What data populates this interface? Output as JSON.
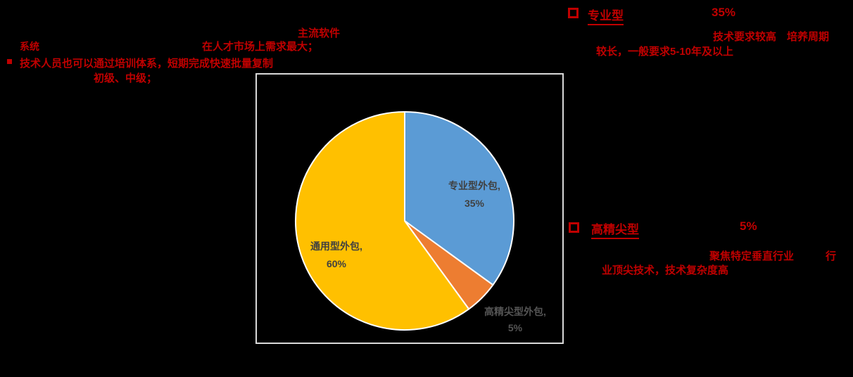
{
  "slide": {
    "background_color": "#000000",
    "accent_color": "#C00000"
  },
  "annotations": {
    "top_left": {
      "line1": "主流软件",
      "line2_part1": "系统",
      "line2_part2": "在人才市场上需求最大；",
      "line3": "技术人员也可以通过培训体系，短期完成快速批量复制",
      "line4": "初级、中级；"
    },
    "right_block_professional": {
      "title": "专业型",
      "value": "35%",
      "line2": "技术要求较高　培养周期",
      "line3": "较长，一般要求5-10年及以上"
    },
    "right_block_highend": {
      "title": "高精尖型",
      "value": "5%",
      "line2_part1": "聚焦特定垂直行业",
      "line2_part2": "行",
      "line3": "业顶尖技术，技术复杂度高"
    }
  },
  "chart_data": {
    "type": "pie",
    "title": "",
    "legend": "none",
    "start_angle_deg": 0,
    "direction": "clockwise",
    "plot_border_color": "#D9D9D9",
    "slice_stroke_color": "#FFFFFF",
    "label_color_inside": "#404040",
    "label_color_outside": "#555555",
    "categories": [
      "专业型外包",
      "高精尖型外包",
      "通用型外包"
    ],
    "values": [
      35,
      5,
      60
    ],
    "slices": [
      {
        "label": "专业型外包",
        "value": 35,
        "color": "#5B9BD5",
        "data_label_line1": "专业型外包,",
        "data_label_line2": "35%"
      },
      {
        "label": "高精尖型外包",
        "value": 5,
        "color": "#ED7D31",
        "data_label_line1": "高精尖型外包,",
        "data_label_line2": "5%"
      },
      {
        "label": "通用型外包",
        "value": 60,
        "color": "#FFC000",
        "data_label_line1": "通用型外包,",
        "data_label_line2": "60%"
      }
    ]
  }
}
